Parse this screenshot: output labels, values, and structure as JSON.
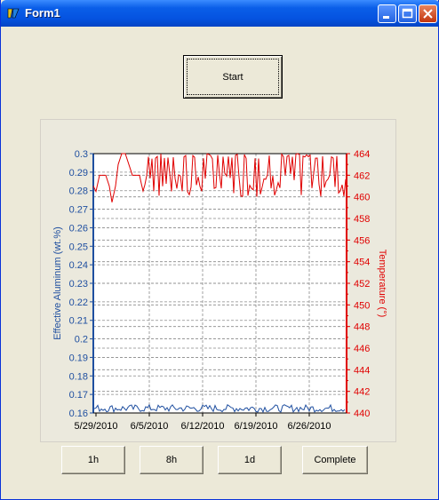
{
  "window": {
    "title": "Form1"
  },
  "buttons": {
    "start": "Start",
    "h1": "1h",
    "h8": "8h",
    "d1": "1d",
    "complete": "Complete"
  },
  "chart_data": {
    "type": "line",
    "x_axis": {
      "tick_labels": [
        "5/29/2010",
        "6/5/2010",
        "6/12/2010",
        "6/19/2010",
        "6/26/2010"
      ]
    },
    "y_left": {
      "label": "Effective Aluminum (wt.%)",
      "range": [
        0.16,
        0.3
      ],
      "ticks": [
        "0.3",
        "0.29",
        "0.28",
        "0.27",
        "0.26",
        "0.25",
        "0.24",
        "0.23",
        "0.22",
        "0.21",
        "0.2",
        "0.19",
        "0.18",
        "0.17",
        "0.16"
      ],
      "color": "#1f4fa0"
    },
    "y_right": {
      "label": "Temperature (°)",
      "range": [
        440,
        464
      ],
      "ticks": [
        "464",
        "462",
        "460",
        "458",
        "456",
        "454",
        "452",
        "450",
        "448",
        "446",
        "444",
        "442",
        "440"
      ],
      "color": "#e00000"
    },
    "grid": true,
    "series": [
      {
        "axis": "right",
        "color": "#e00000",
        "min": 460,
        "max": 464,
        "pattern": "dense oscillation between ~460 and ~464 across the full range; early dip to ~459.5 near start"
      },
      {
        "axis": "left",
        "color": "#1f4fa0",
        "min": 0.16,
        "max": 0.165,
        "pattern": "flat noisy line near 0.162 across full range"
      }
    ]
  }
}
